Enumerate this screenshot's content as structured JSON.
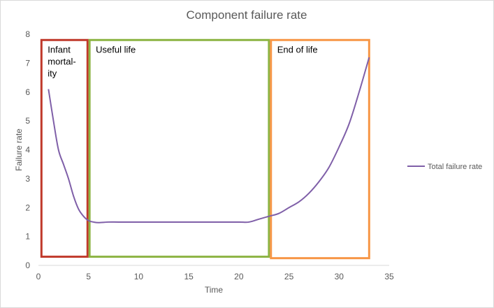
{
  "chart_data": {
    "type": "line",
    "title": "Component failure rate",
    "xlabel": "Time",
    "ylabel": "Failure rate",
    "xlim": [
      0,
      35
    ],
    "ylim": [
      0,
      8
    ],
    "xticks": [
      0,
      5,
      10,
      15,
      20,
      25,
      30,
      35
    ],
    "yticks": [
      0,
      1,
      2,
      3,
      4,
      5,
      6,
      7,
      8
    ],
    "grid": false,
    "legend_position": "right",
    "series": [
      {
        "name": "Total failure rate",
        "color": "#7f5fa8",
        "x": [
          1,
          1.5,
          2,
          2.5,
          3,
          3.5,
          4,
          4.5,
          5,
          5.5,
          6,
          7,
          8,
          10,
          12,
          14,
          16,
          18,
          20,
          21,
          22,
          23,
          24,
          25,
          26,
          27,
          28,
          29,
          30,
          31,
          32,
          33
        ],
        "y": [
          6.1,
          5.0,
          4.0,
          3.5,
          3.0,
          2.4,
          1.95,
          1.7,
          1.55,
          1.5,
          1.48,
          1.5,
          1.5,
          1.5,
          1.5,
          1.5,
          1.5,
          1.5,
          1.5,
          1.5,
          1.6,
          1.7,
          1.8,
          2.0,
          2.2,
          2.5,
          2.9,
          3.4,
          4.1,
          4.9,
          6.0,
          7.2
        ]
      }
    ],
    "regions": [
      {
        "label": "Infant mortal-ity",
        "lines": [
          "Infant",
          "mortal-",
          "ity"
        ],
        "color": "#c0392b",
        "x_start": 0.3,
        "x_end": 4.9,
        "y_start": 0.3,
        "y_end": 7.8
      },
      {
        "label": "Useful life",
        "lines": [
          "Useful life"
        ],
        "color": "#8cb443",
        "x_start": 5.1,
        "x_end": 23.0,
        "y_start": 0.3,
        "y_end": 7.8
      },
      {
        "label": "End of life",
        "lines": [
          "End of life"
        ],
        "color": "#f79646",
        "x_start": 23.2,
        "x_end": 33.0,
        "y_start": 0.25,
        "y_end": 7.8
      }
    ]
  }
}
